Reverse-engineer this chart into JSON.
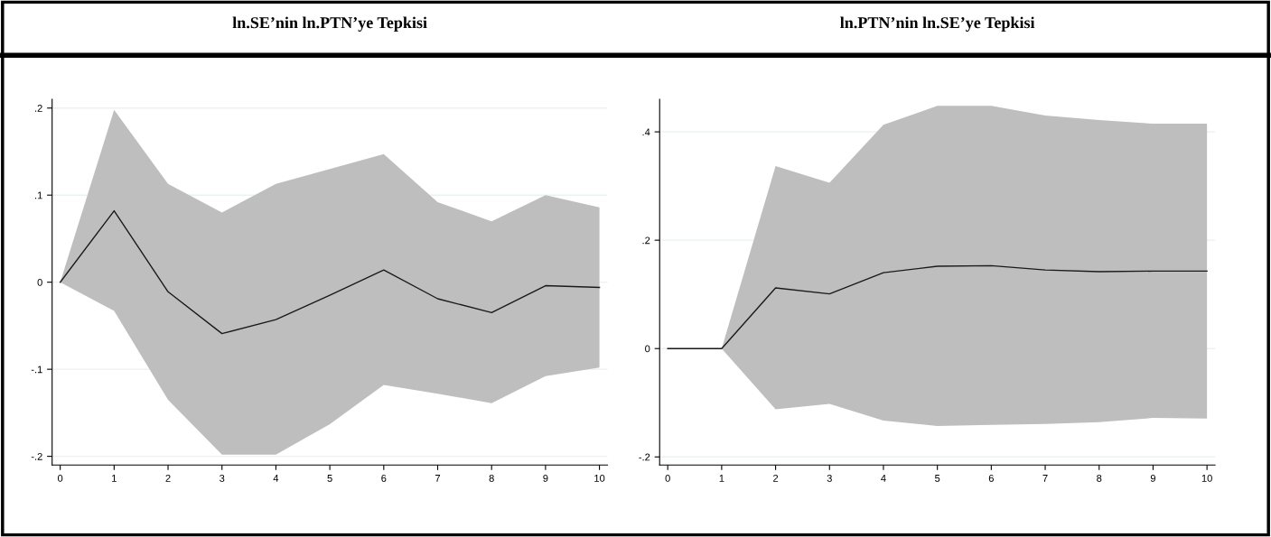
{
  "chart_data": [
    {
      "type": "line",
      "title": "ln.SE’nin ln.PTN’ye Tepkisi",
      "x": [
        0,
        1,
        2,
        3,
        4,
        5,
        6,
        7,
        8,
        9,
        10
      ],
      "series": [
        {
          "color": "#1a1a1a",
          "values": [
            0,
            0.082,
            -0.011,
            -0.059,
            -0.043,
            -0.015,
            0.014,
            -0.019,
            -0.035,
            -0.004,
            -0.006
          ],
          "lower": [
            0,
            -0.033,
            -0.135,
            -0.198,
            -0.198,
            -0.163,
            -0.118,
            -0.128,
            -0.139,
            -0.108,
            -0.098
          ],
          "upper": [
            0,
            0.198,
            0.113,
            0.08,
            0.113,
            0.13,
            0.147,
            0.092,
            0.07,
            0.1,
            0.086
          ]
        }
      ],
      "xlim": [
        -0.15,
        10.15
      ],
      "xticks": [
        0,
        1,
        2,
        3,
        4,
        5,
        6,
        7,
        8,
        9,
        10
      ],
      "ylim": [
        -0.21,
        0.21
      ],
      "yticks": [
        {
          "value": -0.2,
          "label": "-.2"
        },
        {
          "value": -0.1,
          "label": "-.1"
        },
        0,
        {
          "value": 0.1,
          "label": ".1"
        },
        {
          "value": 0.2,
          "label": ".2"
        }
      ],
      "grid": "y"
    },
    {
      "type": "line",
      "title": "ln.PTN’nin ln.SE’ye Tepkisi",
      "x": [
        0,
        1,
        2,
        3,
        4,
        5,
        6,
        7,
        8,
        9,
        10
      ],
      "series": [
        {
          "color": "#1a1a1a",
          "values": [
            0,
            0,
            0.112,
            0.101,
            0.14,
            0.152,
            0.153,
            0.145,
            0.142,
            0.143,
            0.143
          ],
          "lower": [
            0,
            0,
            -0.112,
            -0.102,
            -0.133,
            -0.143,
            -0.141,
            -0.139,
            -0.136,
            -0.128,
            -0.129
          ],
          "upper": [
            0,
            0,
            0.337,
            0.306,
            0.413,
            0.448,
            0.448,
            0.43,
            0.422,
            0.415,
            0.415
          ]
        }
      ],
      "xlim": [
        -0.15,
        10.15
      ],
      "xticks": [
        0,
        1,
        2,
        3,
        4,
        5,
        6,
        7,
        8,
        9,
        10
      ],
      "ylim": [
        -0.215,
        0.46
      ],
      "yticks": [
        {
          "value": -0.2,
          "label": "-.2"
        },
        0,
        {
          "value": 0.2,
          "label": ".2"
        },
        {
          "value": 0.4,
          "label": ".4"
        }
      ],
      "grid": "y"
    }
  ]
}
